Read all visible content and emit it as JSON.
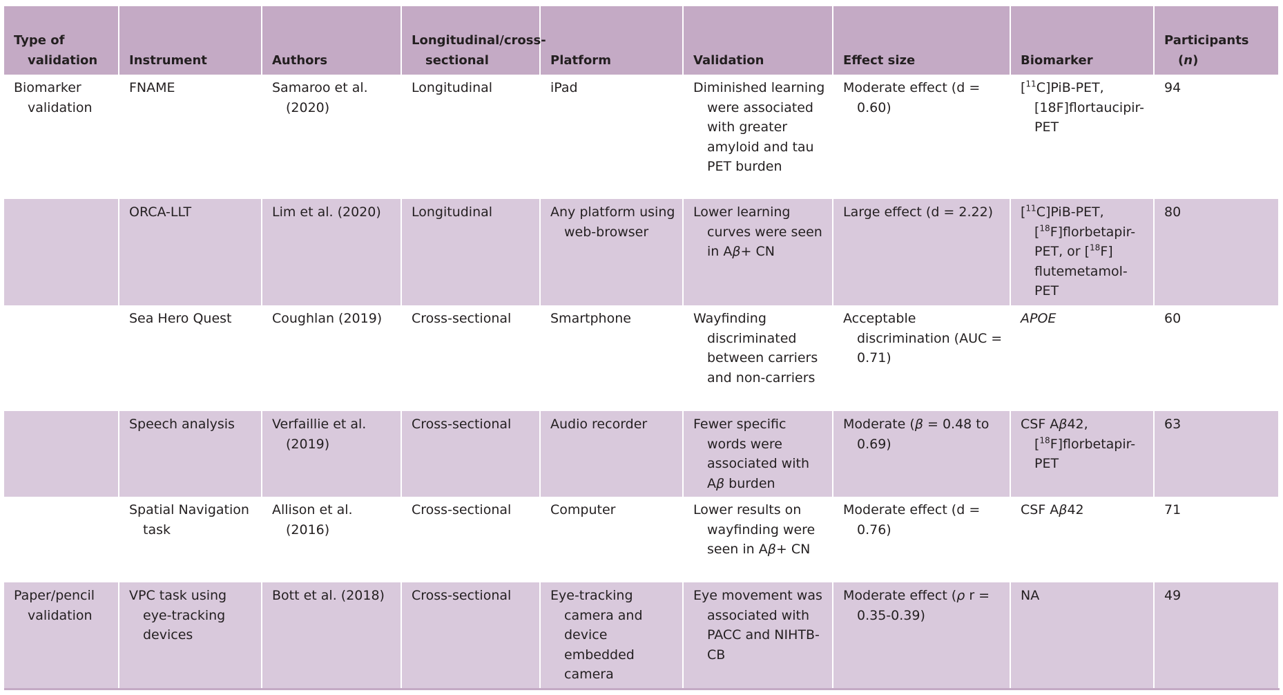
{
  "table": {
    "header": [
      "Type of validation",
      "Instrument",
      "Authors",
      "Longitudinal/cross-sectional",
      "Platform",
      "Validation",
      "Effect size",
      "Biomarker",
      [
        "Participants (",
        {
          "em": "n"
        },
        ")"
      ]
    ],
    "rows": [
      [
        "Biomarker validation",
        "FNAME",
        "Samaroo et al. (2020)",
        "Longitudinal",
        "iPad",
        "Diminished learning were associated with greater amyloid and tau PET burden",
        "Moderate effect (d = 0.60)",
        [
          "[",
          {
            "sup": "11"
          },
          "C]PiB-PET, [18F]flortaucipir-PET"
        ],
        94
      ],
      [
        null,
        "ORCA-LLT",
        "Lim et al. (2020)",
        "Longitudinal",
        "Any platform using web-browser",
        [
          "Lower learning curves were seen in A",
          {
            "em": "β"
          },
          "+ CN"
        ],
        "Large effect (d = 2.22)",
        [
          "[",
          {
            "sup": "11"
          },
          "C]PiB-PET, [",
          {
            "sup": "18"
          },
          "F]florbetapir-PET, or [",
          {
            "sup": "18"
          },
          "F] flutemetamol-PET"
        ],
        80
      ],
      [
        null,
        "Sea Hero Quest",
        "Coughlan (2019)",
        "Cross-sectional",
        "Smartphone",
        "Wayfinding discriminated between carriers and non-carriers",
        "Acceptable discrimination (AUC = 0.71)",
        [
          {
            "em": "APOE"
          }
        ],
        60
      ],
      [
        null,
        "Speech analysis",
        "Verfaillie et al. (2019)",
        "Cross-sectional",
        "Audio recorder",
        [
          "Fewer specific words were associated with A",
          {
            "em": "β"
          },
          " burden"
        ],
        [
          "Moderate (",
          {
            "em": "β"
          },
          " = 0.48 to 0.69)"
        ],
        [
          "CSF A",
          {
            "em": "β"
          },
          "42, [",
          {
            "sup": "18"
          },
          "F]florbetapir-PET"
        ],
        63
      ],
      [
        null,
        "Spatial Navigation task",
        "Allison et al. (2016)",
        "Cross-sectional",
        "Computer",
        [
          "Lower results on wayfinding were seen in A",
          {
            "em": "β"
          },
          "+ CN"
        ],
        "Moderate effect (d = 0.76)",
        [
          "CSF A",
          {
            "em": "β"
          },
          "42"
        ],
        71
      ],
      [
        "Paper/pencil validation",
        "VPC task using eye-tracking devices",
        "Bott et al. (2018)",
        "Cross-sectional",
        "Eye-tracking camera and device embedded camera",
        "Eye movement was associated with PACC and NIHTB-CB",
        [
          "Moderate effect (",
          {
            "em": "ρ"
          },
          " r = 0.35-0.39)"
        ],
        "NA",
        49
      ]
    ]
  }
}
